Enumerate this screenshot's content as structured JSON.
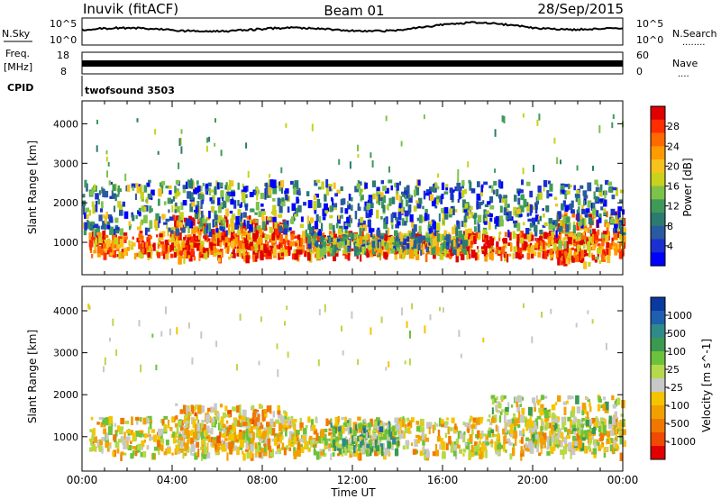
{
  "header": {
    "station": "Inuvik (fitACF)",
    "beam": "Beam 01",
    "date": "28/Sep/2015"
  },
  "top_panels": {
    "nsky": {
      "label": "N.Sky",
      "ticks_left": [
        "10^5",
        "10^0"
      ],
      "ticks_right": [
        "10^5",
        "10^0"
      ],
      "right_label": "N.Search"
    },
    "freq": {
      "label_line1": "Freq.",
      "label_line2": "[MHz]",
      "ticks_left": [
        "18",
        "8"
      ],
      "ticks_right": [
        "60",
        "0"
      ],
      "right_label": "Nave"
    },
    "cpid": {
      "label": "CPID",
      "program": "twofsound 3503"
    }
  },
  "chart_data": [
    {
      "type": "heatmap",
      "title": "",
      "xlabel": "Time UT",
      "ylabel": "Slant Range [km]",
      "x_ticks": [
        "00:00",
        "04:00",
        "08:00",
        "12:00",
        "16:00",
        "20:00",
        "00:00"
      ],
      "y_ticks": [
        1000,
        2000,
        3000,
        4000
      ],
      "ylim": [
        180,
        4580
      ],
      "xlim": [
        0,
        24
      ],
      "colorbar": {
        "label": "Power [dB]",
        "ticks": [
          "28",
          "24",
          "20",
          "16",
          "12",
          "8",
          "4"
        ],
        "colors": [
          "#e00000",
          "#ff2d00",
          "#ff6a00",
          "#ff9a00",
          "#f7c21e",
          "#c8d21c",
          "#7fc24a",
          "#3f9a5a",
          "#2d7a70",
          "#2a5aa0",
          "#1a30d0",
          "#0000ff"
        ],
        "range": [
          0,
          32
        ]
      },
      "regions": [
        {
          "t": [
            0.3,
            24
          ],
          "r": [
            700,
            1300
          ],
          "level": 26
        },
        {
          "t": [
            4,
            9
          ],
          "r": [
            600,
            1700
          ],
          "level": 27
        },
        {
          "t": [
            10,
            17
          ],
          "r": [
            800,
            1250
          ],
          "level": 14
        },
        {
          "t": [
            21,
            24
          ],
          "r": [
            500,
            1800
          ],
          "level": 24
        },
        {
          "t": [
            0,
            24
          ],
          "r": [
            1300,
            2600
          ],
          "level": 10
        }
      ]
    },
    {
      "type": "heatmap",
      "title": "",
      "xlabel": "Time UT",
      "ylabel": "Slant Range [km]",
      "x_ticks": [
        "00:00",
        "04:00",
        "08:00",
        "12:00",
        "16:00",
        "20:00",
        "00:00"
      ],
      "y_ticks": [
        1000,
        2000,
        3000,
        4000
      ],
      "ylim": [
        180,
        4580
      ],
      "xlim": [
        0,
        24
      ],
      "colorbar": {
        "label": "Velocity [m s^-1]",
        "ticks": [
          "1000",
          "500",
          "100",
          "25",
          "-25",
          "-100",
          "-500",
          "-1000"
        ],
        "colors": [
          "#0a3aa0",
          "#1f5fb0",
          "#2f8a8a",
          "#3a9a50",
          "#6cc23a",
          "#b5d94a",
          "#c8c8c8",
          "#f5c400",
          "#f2a000",
          "#f07800",
          "#ef4a00",
          "#e00000"
        ],
        "range": [
          -1100,
          1100
        ]
      },
      "regions": [
        {
          "t": [
            0.3,
            24
          ],
          "r": [
            600,
            1500
          ],
          "level": -150
        },
        {
          "t": [
            4,
            9
          ],
          "r": [
            700,
            1800
          ],
          "level": -300
        },
        {
          "t": [
            11,
            14
          ],
          "r": [
            700,
            1400
          ],
          "level": 300
        },
        {
          "t": [
            18,
            24
          ],
          "r": [
            700,
            2000
          ],
          "level": -20
        }
      ]
    }
  ]
}
